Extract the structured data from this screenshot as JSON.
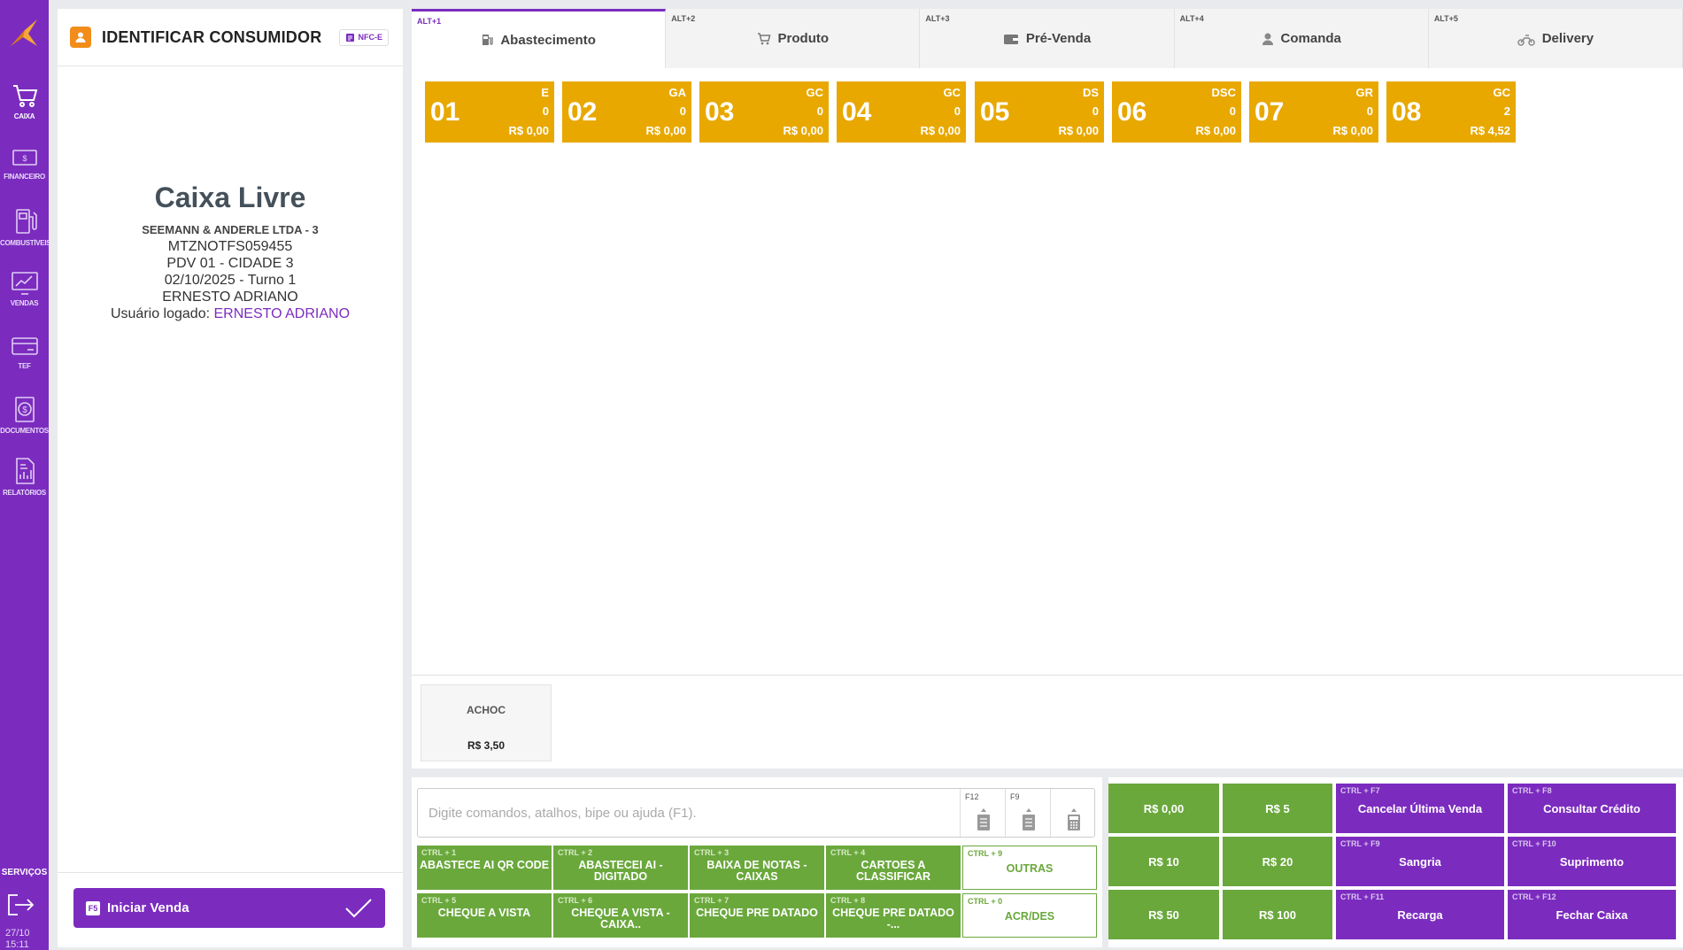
{
  "sidebar": {
    "items": [
      {
        "label": "CAIXA",
        "icon": "cart-icon"
      },
      {
        "label": "FINANCEIRO",
        "icon": "money-icon"
      },
      {
        "label": "COMBUSTÍVEIS",
        "icon": "fuel-pump-icon"
      },
      {
        "label": "VENDAS",
        "icon": "chart-monitor-icon"
      },
      {
        "label": "TEF",
        "icon": "card-icon"
      },
      {
        "label": "DOCUMENTOS",
        "icon": "document-dollar-icon"
      },
      {
        "label": "RELATÓRIOS",
        "icon": "report-icon"
      }
    ],
    "services_label": "SERVIÇOS",
    "date": "27/10",
    "time": "15:11"
  },
  "left_panel": {
    "title": "IDENTIFICAR CONSUMIDOR",
    "nfce_label": "NFC-E",
    "status_title": "Caixa Livre",
    "company": "SEEMANN & ANDERLE LTDA - 3",
    "serial": "MTZNOTFS059455",
    "pdv": "PDV 01 - CIDADE 3",
    "shift": "02/10/2025 - Turno 1",
    "operator": "ERNESTO ADRIANO",
    "logged_user_label": "Usuário logado:",
    "logged_user": "ERNESTO ADRIANO",
    "start_key": "F5",
    "start_label": "Iniciar Venda"
  },
  "tabs": [
    {
      "hotkey": "ALT+1",
      "label": "Abastecimento"
    },
    {
      "hotkey": "ALT+2",
      "label": "Produto"
    },
    {
      "hotkey": "ALT+3",
      "label": "Pré-Venda"
    },
    {
      "hotkey": "ALT+4",
      "label": "Comanda"
    },
    {
      "hotkey": "ALT+5",
      "label": "Delivery"
    }
  ],
  "pumps": [
    {
      "number": "01",
      "fuel": "E",
      "count": "0",
      "value": "R$ 0,00"
    },
    {
      "number": "02",
      "fuel": "GA",
      "count": "0",
      "value": "R$ 0,00"
    },
    {
      "number": "03",
      "fuel": "GC",
      "count": "0",
      "value": "R$ 0,00"
    },
    {
      "number": "04",
      "fuel": "GC",
      "count": "0",
      "value": "R$ 0,00"
    },
    {
      "number": "05",
      "fuel": "DS",
      "count": "0",
      "value": "R$ 0,00"
    },
    {
      "number": "06",
      "fuel": "DSC",
      "count": "0",
      "value": "R$ 0,00"
    },
    {
      "number": "07",
      "fuel": "GR",
      "count": "0",
      "value": "R$ 0,00"
    },
    {
      "number": "08",
      "fuel": "GC",
      "count": "2",
      "value": "R$ 4,52"
    }
  ],
  "quick_product": {
    "name": "ACHOC",
    "price": "R$ 3,50"
  },
  "command": {
    "placeholder": "Digite comandos, atalhos, bipe ou ajuda (F1).",
    "key_f12": "F12",
    "key_f9": "F9"
  },
  "actions": [
    {
      "hotkey": "CTRL + 1",
      "label": "ABASTECE AI QR CODE"
    },
    {
      "hotkey": "CTRL + 2",
      "label": "ABASTECEI AI - DIGITADO"
    },
    {
      "hotkey": "CTRL + 3",
      "label": "BAIXA DE NOTAS - CAIXAS"
    },
    {
      "hotkey": "CTRL + 4",
      "label": "CARTOES A CLASSIFICAR"
    },
    {
      "hotkey": "CTRL + 9",
      "label": "OUTRAS"
    },
    {
      "hotkey": "CTRL + 5",
      "label": "CHEQUE A VISTA"
    },
    {
      "hotkey": "CTRL + 6",
      "label": "CHEQUE A VISTA - CAIXA.."
    },
    {
      "hotkey": "CTRL + 7",
      "label": "CHEQUE PRE DATADO"
    },
    {
      "hotkey": "CTRL + 8",
      "label": "CHEQUE PRE DATADO -..."
    },
    {
      "hotkey": "CTRL + 0",
      "label": "ACR/DES"
    }
  ],
  "cash_buttons": [
    "R$ 0,00",
    "R$ 5",
    "R$ 10",
    "R$ 20",
    "R$ 50",
    "R$ 100"
  ],
  "cash_actions": [
    {
      "hotkey": "CTRL + F7",
      "label": "Cancelar Última Venda"
    },
    {
      "hotkey": "CTRL + F8",
      "label": "Consultar Crédito"
    },
    {
      "hotkey": "CTRL + F9",
      "label": "Sangria"
    },
    {
      "hotkey": "CTRL + F10",
      "label": "Suprimento"
    },
    {
      "hotkey": "CTRL + F11",
      "label": "Recarga"
    },
    {
      "hotkey": "CTRL + F12",
      "label": "Fechar Caixa"
    }
  ],
  "colors": {
    "brand": "#7b2cbf",
    "pump": "#e8a800",
    "green": "#6aa83c",
    "orange": "#f28c1a"
  }
}
